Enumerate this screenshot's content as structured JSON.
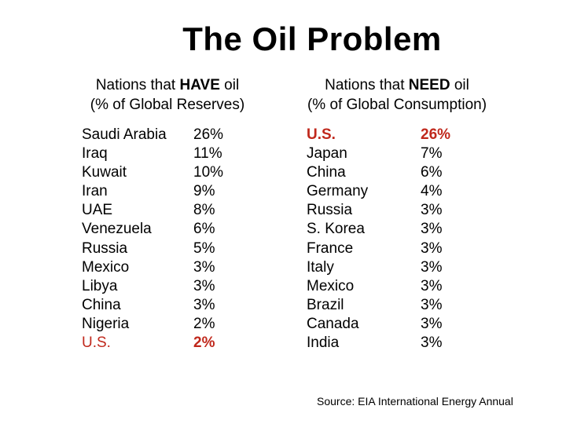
{
  "title": "The Oil Problem",
  "have": {
    "header_pre": "Nations that ",
    "header_strong": "HAVE",
    "header_post": " oil",
    "subheader": "(% of Global Reserves)",
    "rows": [
      {
        "name": "Saudi Arabia",
        "value": "26%"
      },
      {
        "name": "Iraq",
        "value": "11%"
      },
      {
        "name": "Kuwait",
        "value": "10%"
      },
      {
        "name": "Iran",
        "value": "9%"
      },
      {
        "name": "UAE",
        "value": "8%"
      },
      {
        "name": "Venezuela",
        "value": "6%"
      },
      {
        "name": "Russia",
        "value": "5%"
      },
      {
        "name": "Mexico",
        "value": "3%"
      },
      {
        "name": "Libya",
        "value": "3%"
      },
      {
        "name": "China",
        "value": "3%"
      },
      {
        "name": "Nigeria",
        "value": "2%"
      },
      {
        "name": "U.S.",
        "value": "2%"
      }
    ]
  },
  "need": {
    "header_pre": "Nations that ",
    "header_strong": "NEED",
    "header_post": " oil",
    "subheader": "(% of Global Consumption)",
    "rows": [
      {
        "name": "U.S.",
        "value": "26%"
      },
      {
        "name": "Japan",
        "value": "7%"
      },
      {
        "name": "China",
        "value": "6%"
      },
      {
        "name": "Germany",
        "value": "4%"
      },
      {
        "name": "Russia",
        "value": "3%"
      },
      {
        "name": "S. Korea",
        "value": "3%"
      },
      {
        "name": "France",
        "value": "3%"
      },
      {
        "name": "Italy",
        "value": "3%"
      },
      {
        "name": "Mexico",
        "value": "3%"
      },
      {
        "name": "Brazil",
        "value": "3%"
      },
      {
        "name": "Canada",
        "value": "3%"
      },
      {
        "name": "India",
        "value": "3%"
      }
    ]
  },
  "highlight_color": "#c0281c",
  "source": "Source:  EIA International Energy Annual"
}
